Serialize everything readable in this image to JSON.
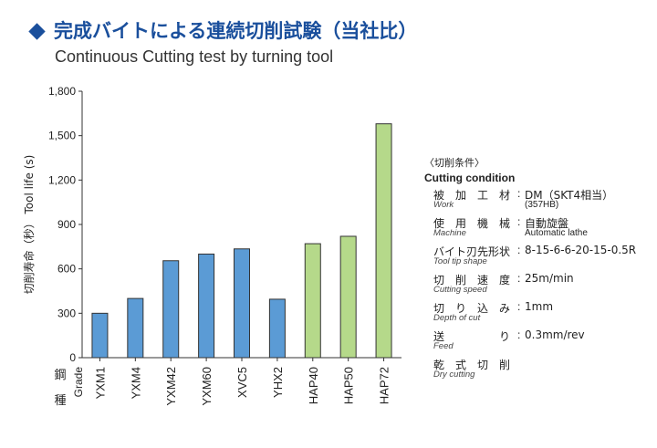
{
  "header": {
    "title_jp": "完成バイトによる連続切削試験（当社比）",
    "title_en": "Continuous Cutting test by turning tool"
  },
  "chart_data": {
    "type": "bar",
    "title": "完成バイトによる連続切削試験（当社比）",
    "subtitle": "Continuous Cutting test by turning tool",
    "xlabel_jp": "鋼種",
    "xlabel_en": "Grade",
    "ylabel": "切削寿命（秒） Tool life (s)",
    "ylim": [
      0,
      1800
    ],
    "yticks": [
      "0",
      "300",
      "600",
      "900",
      "1,200",
      "1,500",
      "1,800"
    ],
    "ytick_values": [
      0,
      300,
      600,
      900,
      1200,
      1500,
      1800
    ],
    "categories": [
      "YXM1",
      "YXM4",
      "YXM42",
      "YXM60",
      "XVC5",
      "YHX2",
      "HAP40",
      "HAP50",
      "HAP72"
    ],
    "values": [
      300,
      400,
      655,
      700,
      735,
      395,
      770,
      820,
      1580
    ],
    "colors": [
      "#5b9bd5",
      "#5b9bd5",
      "#5b9bd5",
      "#5b9bd5",
      "#5b9bd5",
      "#5b9bd5",
      "#b5d98a",
      "#b5d98a",
      "#b5d98a"
    ],
    "bar_stroke": "#333333",
    "grid": false,
    "legend": "none"
  },
  "conditions": {
    "heading_jp": "〈切削条件〉",
    "heading_en": "Cutting condition",
    "items": [
      {
        "label_jp": "被　加　工　材",
        "label_en": "Work",
        "value": "DM（SKT4相当）",
        "value2": "(357HB)"
      },
      {
        "label_jp": "使　用　機　械",
        "label_en": "Machine",
        "value": "自動旋盤",
        "value2": "Automatic lathe"
      },
      {
        "label_jp": "バイト刃先形状",
        "label_en": "Tool tip shape",
        "value": "8-15-6-6-20-15-0.5R",
        "value2": ""
      },
      {
        "label_jp": "切　削　速　度",
        "label_en": "Cutting speed",
        "value": "25m/min",
        "value2": ""
      },
      {
        "label_jp": "切　り　込　み",
        "label_en": "Depth of cut",
        "value": "1mm",
        "value2": ""
      },
      {
        "label_jp": "送　　　　　り",
        "label_en": "Feed",
        "value": "0.3mm/rev",
        "value2": ""
      },
      {
        "label_jp": "乾　式　切　削",
        "label_en": "Dry cutting",
        "value": "",
        "value2": ""
      }
    ]
  }
}
